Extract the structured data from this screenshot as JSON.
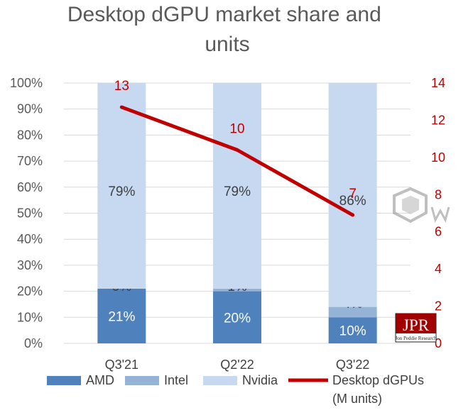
{
  "chart_data": {
    "type": "bar",
    "stacked": true,
    "title": "Desktop dGPU market share and units",
    "categories": [
      "Q3'21",
      "Q2'22",
      "Q3'22"
    ],
    "series": [
      {
        "name": "AMD",
        "values": [
          21,
          20,
          10
        ],
        "labels": [
          "21%",
          "20%",
          "10%"
        ],
        "color": "#4f81bd"
      },
      {
        "name": "Intel",
        "values": [
          0,
          1,
          4
        ],
        "labels": [
          "0%",
          "1%",
          "4%"
        ],
        "color": "#95b3d7"
      },
      {
        "name": "Nvidia",
        "values": [
          79,
          79,
          86
        ],
        "labels": [
          "79%",
          "79%",
          "86%"
        ],
        "color": "#c6d9f1"
      }
    ],
    "line_series": {
      "name": "Desktop dGPUs (M units)",
      "legend_lines": [
        "Desktop dGPUs",
        "(M units)"
      ],
      "values": [
        12.7,
        10.4,
        6.9
      ],
      "labels": [
        "13",
        "10",
        "7"
      ],
      "color": "#c00000"
    },
    "ylim_left": [
      0,
      100
    ],
    "yticks_left": [
      "0%",
      "10%",
      "20%",
      "30%",
      "40%",
      "50%",
      "60%",
      "70%",
      "80%",
      "90%",
      "100%"
    ],
    "ylim_right": [
      0,
      14
    ],
    "yticks_right": [
      "0",
      "2",
      "4",
      "6",
      "8",
      "10",
      "12",
      "14"
    ],
    "grid": true,
    "legend_position": "bottom"
  },
  "logo": {
    "text": "JPR",
    "subtext": "Jon Peddie Research"
  }
}
